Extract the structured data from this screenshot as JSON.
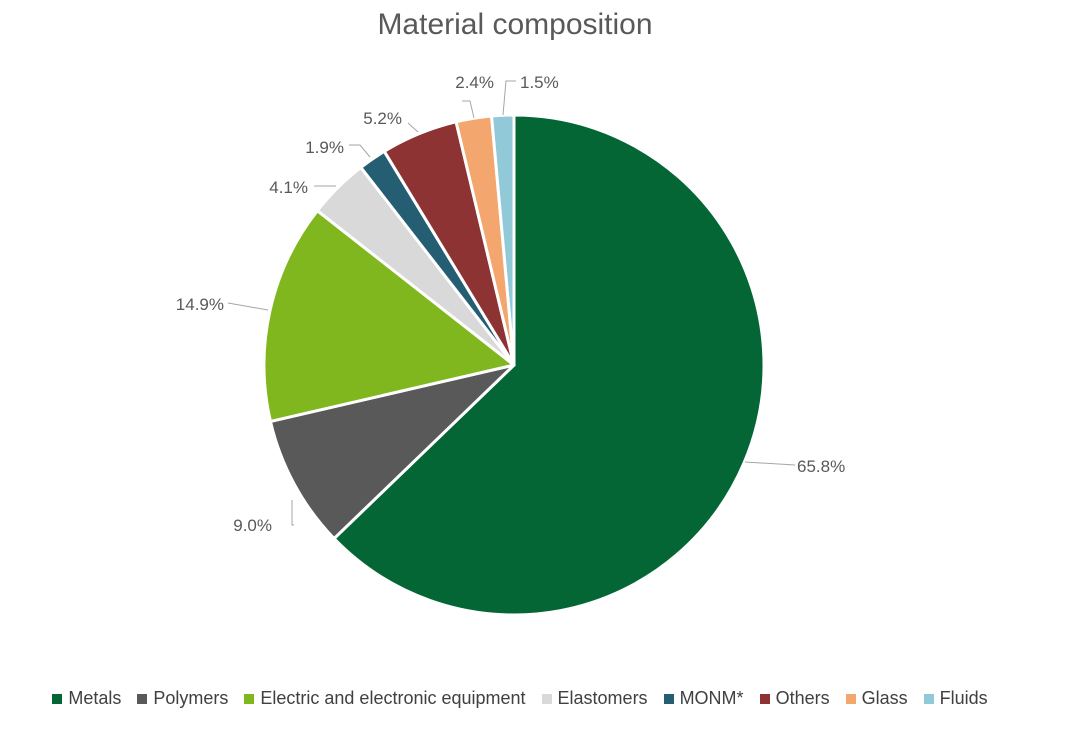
{
  "chart_data": {
    "type": "pie",
    "title": "Material composition",
    "series": [
      {
        "name": "Metals",
        "value": 65.8,
        "label": "65.8%",
        "color": "#046635"
      },
      {
        "name": "Polymers",
        "value": 9.0,
        "label": "9.0%",
        "color": "#595959"
      },
      {
        "name": "Electric and electronic equipment",
        "value": 14.9,
        "label": "14.9%",
        "color": "#80B71E"
      },
      {
        "name": "Elastomers",
        "value": 4.1,
        "label": "4.1%",
        "color": "#D9D9D9"
      },
      {
        "name": "MONM*",
        "value": 1.9,
        "label": "1.9%",
        "color": "#255E73"
      },
      {
        "name": "Others",
        "value": 5.2,
        "label": "5.2%",
        "color": "#8E3333"
      },
      {
        "name": "Glass",
        "value": 2.4,
        "label": "2.4%",
        "color": "#F3A76F"
      },
      {
        "name": "Fluids",
        "value": 1.5,
        "label": "1.5%",
        "color": "#92C9D8"
      }
    ],
    "start": "top",
    "direction": "clockwise",
    "legend_position": "bottom"
  }
}
